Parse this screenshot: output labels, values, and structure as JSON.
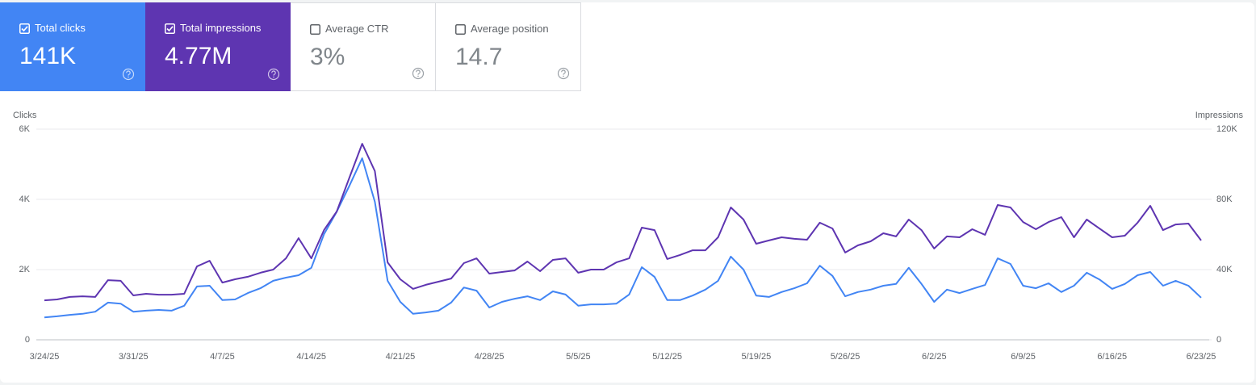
{
  "cards": [
    {
      "label": "Total clicks",
      "value": "141K",
      "checked": true,
      "color": "#4285f4"
    },
    {
      "label": "Total impressions",
      "value": "4.77M",
      "checked": true,
      "color": "#5e35b1"
    },
    {
      "label": "Average CTR",
      "value": "3%",
      "checked": false,
      "color": "#ffffff"
    },
    {
      "label": "Average position",
      "value": "14.7",
      "checked": false,
      "color": "#ffffff"
    }
  ],
  "chart_data": {
    "type": "line",
    "y_label": "Clicks",
    "y2_label": "Impressions",
    "grid": true,
    "categories": [
      "3/24/25",
      null,
      null,
      null,
      null,
      null,
      null,
      "3/31/25",
      null,
      null,
      null,
      null,
      null,
      null,
      "4/7/25",
      null,
      null,
      null,
      null,
      null,
      null,
      "4/14/25",
      null,
      null,
      null,
      null,
      null,
      null,
      "4/21/25",
      null,
      null,
      null,
      null,
      null,
      null,
      "4/28/25",
      null,
      null,
      null,
      null,
      null,
      null,
      "5/5/25",
      null,
      null,
      null,
      null,
      null,
      null,
      "5/12/25",
      null,
      null,
      null,
      null,
      null,
      null,
      "5/19/25",
      null,
      null,
      null,
      null,
      null,
      null,
      "5/26/25",
      null,
      null,
      null,
      null,
      null,
      null,
      "6/2/25",
      null,
      null,
      null,
      null,
      null,
      null,
      "6/9/25",
      null,
      null,
      null,
      null,
      null,
      null,
      "6/16/25",
      null,
      null,
      null,
      null,
      null,
      null,
      "6/23/25"
    ],
    "series": [
      {
        "name": "Clicks",
        "color": "#4285f4",
        "values": [
          640,
          670,
          710,
          740,
          800,
          1060,
          1030,
          800,
          830,
          850,
          830,
          970,
          1520,
          1540,
          1130,
          1150,
          1330,
          1470,
          1680,
          1770,
          1840,
          2050,
          3010,
          3650,
          4390,
          5170,
          3930,
          1680,
          1080,
          740,
          780,
          830,
          1060,
          1490,
          1400,
          920,
          1080,
          1170,
          1240,
          1130,
          1380,
          1290,
          970,
          1010,
          1010,
          1030,
          1290,
          2070,
          1790,
          1130,
          1130,
          1260,
          1430,
          1680,
          2370,
          2000,
          1260,
          1220,
          1360,
          1470,
          1610,
          2110,
          1820,
          1240,
          1360,
          1430,
          1540,
          1590,
          2050,
          1590,
          1080,
          1430,
          1330,
          1450,
          1560,
          2320,
          2160,
          1540,
          1470,
          1610,
          1360,
          1540,
          1910,
          1720,
          1450,
          1590,
          1840,
          1930,
          1540,
          1680,
          1540,
          1200
        ]
      },
      {
        "name": "Impressions",
        "color": "#5e35b1",
        "axis": "y2",
        "values": [
          22500,
          23000,
          24400,
          24800,
          24400,
          34000,
          33600,
          25300,
          26200,
          25700,
          25700,
          26200,
          41800,
          45000,
          32600,
          34500,
          35900,
          38200,
          40000,
          46400,
          57900,
          46400,
          62500,
          73100,
          92400,
          111700,
          96100,
          44100,
          34500,
          29000,
          31300,
          33100,
          34900,
          43700,
          46400,
          37700,
          38600,
          39500,
          44600,
          39100,
          45500,
          46400,
          38200,
          40000,
          40000,
          44100,
          46400,
          63900,
          62500,
          46000,
          48300,
          51000,
          51000,
          58400,
          75400,
          68500,
          54700,
          56600,
          58400,
          57500,
          57000,
          66700,
          63400,
          49700,
          53800,
          56100,
          60700,
          58900,
          68500,
          62500,
          52000,
          58900,
          58400,
          63000,
          59800,
          76800,
          75400,
          67100,
          63000,
          67100,
          69900,
          58400,
          68500,
          63400,
          58400,
          59300,
          66700,
          76300,
          62500,
          65700,
          66200,
          56600
        ]
      }
    ],
    "ylim": [
      0,
      6000
    ],
    "yticks": [
      0,
      {
        "value": 2000,
        "label": "2K"
      },
      {
        "value": 4000,
        "label": "4K"
      },
      {
        "value": 6000,
        "label": "6K"
      }
    ],
    "y2lim": [
      0,
      120000
    ],
    "y2ticks": [
      0,
      {
        "value": 40000,
        "label": "40K"
      },
      {
        "value": 80000,
        "label": "80K"
      },
      {
        "value": 120000,
        "label": "120K"
      }
    ]
  }
}
